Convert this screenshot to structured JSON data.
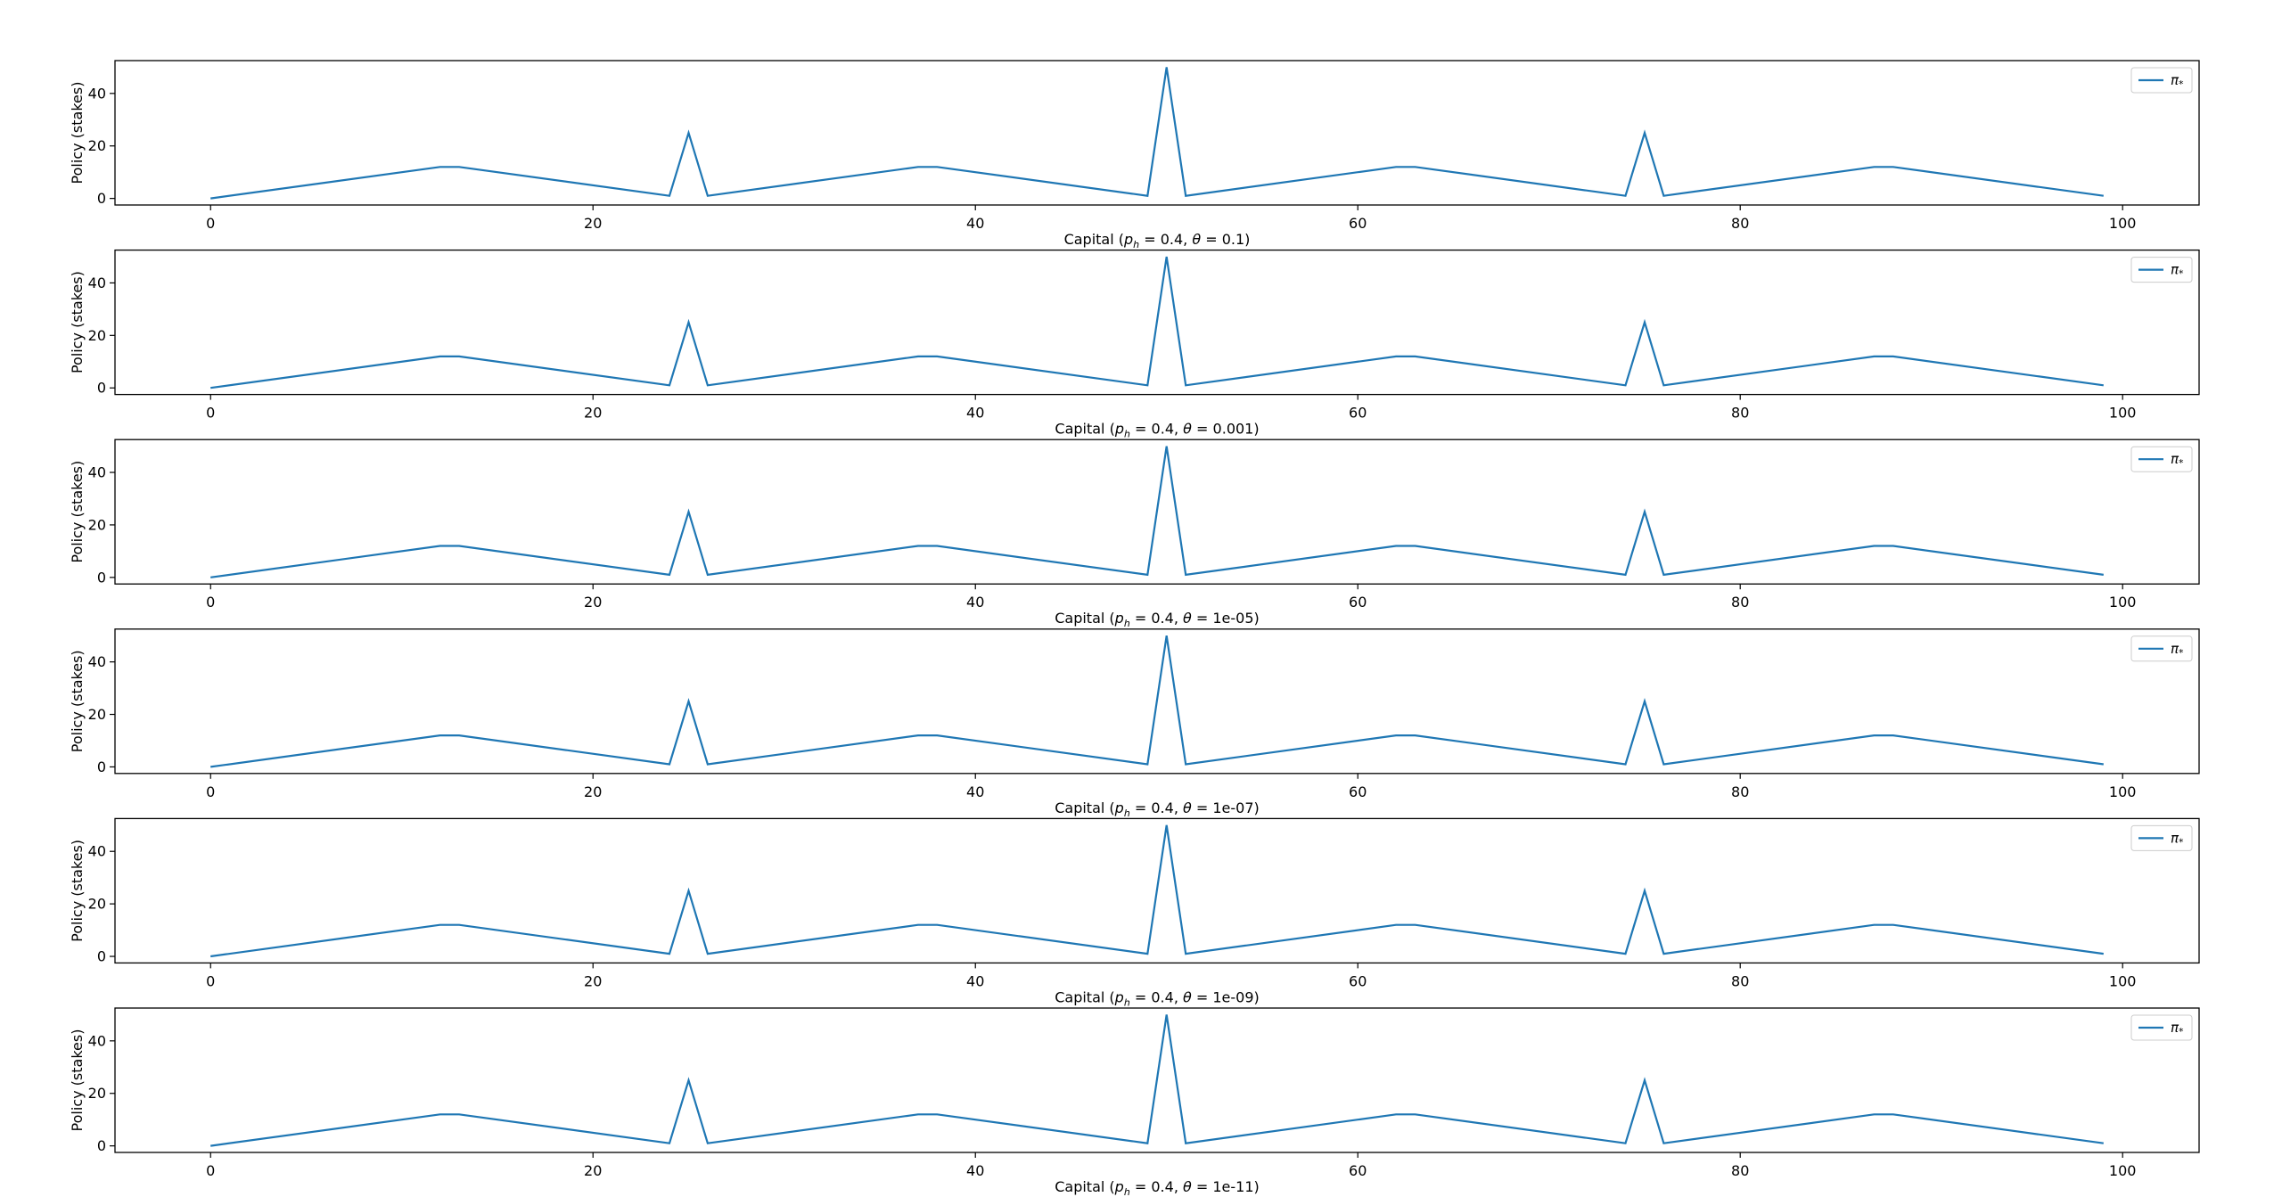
{
  "chart_data": [
    {
      "type": "line",
      "xlabel_prefix": "Capital",
      "xlabel_params": {
        "p_h": "0.4",
        "theta": "0.1"
      },
      "ylabel": "Policy (stakes)",
      "legend": "π*",
      "legend_position": "top-right",
      "xlim": [
        -5,
        104
      ],
      "ylim": [
        -2.5,
        52.5
      ],
      "xticks": [
        0,
        20,
        40,
        60,
        80,
        100
      ],
      "yticks": [
        0,
        20,
        40
      ],
      "grid": false,
      "series": [
        {
          "name": "π*",
          "x": [
            0,
            12,
            13,
            24,
            25,
            26,
            37,
            38,
            49,
            50,
            51,
            62,
            63,
            74,
            75,
            76,
            87,
            88,
            99
          ],
          "y": [
            0,
            12,
            12,
            1,
            25,
            1,
            12,
            12,
            1,
            50,
            1,
            12,
            12,
            1,
            25,
            1,
            12,
            12,
            1
          ]
        }
      ]
    },
    {
      "type": "line",
      "xlabel_prefix": "Capital",
      "xlabel_params": {
        "p_h": "0.4",
        "theta": "0.001"
      },
      "ylabel": "Policy (stakes)",
      "legend": "π*",
      "legend_position": "top-right",
      "xlim": [
        -5,
        104
      ],
      "ylim": [
        -2.5,
        52.5
      ],
      "xticks": [
        0,
        20,
        40,
        60,
        80,
        100
      ],
      "yticks": [
        0,
        20,
        40
      ],
      "grid": false,
      "series": [
        {
          "name": "π*",
          "x": [
            0,
            12,
            13,
            24,
            25,
            26,
            37,
            38,
            49,
            50,
            51,
            62,
            63,
            74,
            75,
            76,
            87,
            88,
            99
          ],
          "y": [
            0,
            12,
            12,
            1,
            25,
            1,
            12,
            12,
            1,
            50,
            1,
            12,
            12,
            1,
            25,
            1,
            12,
            12,
            1
          ]
        }
      ]
    },
    {
      "type": "line",
      "xlabel_prefix": "Capital",
      "xlabel_params": {
        "p_h": "0.4",
        "theta": "1e-05"
      },
      "ylabel": "Policy (stakes)",
      "legend": "π*",
      "legend_position": "top-right",
      "xlim": [
        -5,
        104
      ],
      "ylim": [
        -2.5,
        52.5
      ],
      "xticks": [
        0,
        20,
        40,
        60,
        80,
        100
      ],
      "yticks": [
        0,
        20,
        40
      ],
      "grid": false,
      "series": [
        {
          "name": "π*",
          "x": [
            0,
            12,
            13,
            24,
            25,
            26,
            37,
            38,
            49,
            50,
            51,
            62,
            63,
            74,
            75,
            76,
            87,
            88,
            99
          ],
          "y": [
            0,
            12,
            12,
            1,
            25,
            1,
            12,
            12,
            1,
            50,
            1,
            12,
            12,
            1,
            25,
            1,
            12,
            12,
            1
          ]
        }
      ]
    },
    {
      "type": "line",
      "xlabel_prefix": "Capital",
      "xlabel_params": {
        "p_h": "0.4",
        "theta": "1e-07"
      },
      "ylabel": "Policy (stakes)",
      "legend": "π*",
      "legend_position": "top-right",
      "xlim": [
        -5,
        104
      ],
      "ylim": [
        -2.5,
        52.5
      ],
      "xticks": [
        0,
        20,
        40,
        60,
        80,
        100
      ],
      "yticks": [
        0,
        20,
        40
      ],
      "grid": false,
      "series": [
        {
          "name": "π*",
          "x": [
            0,
            12,
            13,
            24,
            25,
            26,
            37,
            38,
            49,
            50,
            51,
            62,
            63,
            74,
            75,
            76,
            87,
            88,
            99
          ],
          "y": [
            0,
            12,
            12,
            1,
            25,
            1,
            12,
            12,
            1,
            50,
            1,
            12,
            12,
            1,
            25,
            1,
            12,
            12,
            1
          ]
        }
      ]
    },
    {
      "type": "line",
      "xlabel_prefix": "Capital",
      "xlabel_params": {
        "p_h": "0.4",
        "theta": "1e-09"
      },
      "ylabel": "Policy (stakes)",
      "legend": "π*",
      "legend_position": "top-right",
      "xlim": [
        -5,
        104
      ],
      "ylim": [
        -2.5,
        52.5
      ],
      "xticks": [
        0,
        20,
        40,
        60,
        80,
        100
      ],
      "yticks": [
        0,
        20,
        40
      ],
      "grid": false,
      "series": [
        {
          "name": "π*",
          "x": [
            0,
            12,
            13,
            24,
            25,
            26,
            37,
            38,
            49,
            50,
            51,
            62,
            63,
            74,
            75,
            76,
            87,
            88,
            99
          ],
          "y": [
            0,
            12,
            12,
            1,
            25,
            1,
            12,
            12,
            1,
            50,
            1,
            12,
            12,
            1,
            25,
            1,
            12,
            12,
            1
          ]
        }
      ]
    },
    {
      "type": "line",
      "xlabel_prefix": "Capital",
      "xlabel_params": {
        "p_h": "0.4",
        "theta": "1e-11"
      },
      "ylabel": "Policy (stakes)",
      "legend": "π*",
      "legend_position": "top-right",
      "xlim": [
        -5,
        104
      ],
      "ylim": [
        -2.5,
        52.5
      ],
      "xticks": [
        0,
        20,
        40,
        60,
        80,
        100
      ],
      "yticks": [
        0,
        20,
        40
      ],
      "grid": false,
      "series": [
        {
          "name": "π*",
          "x": [
            0,
            12,
            13,
            24,
            25,
            26,
            37,
            38,
            49,
            50,
            51,
            62,
            63,
            74,
            75,
            76,
            87,
            88,
            99
          ],
          "y": [
            0,
            12,
            12,
            1,
            25,
            1,
            12,
            12,
            1,
            50,
            1,
            12,
            12,
            1,
            25,
            1,
            12,
            12,
            1
          ]
        }
      ]
    }
  ],
  "colors": {
    "line": "#1f77b4",
    "axes": "#000000",
    "legend_border": "#cccccc"
  }
}
